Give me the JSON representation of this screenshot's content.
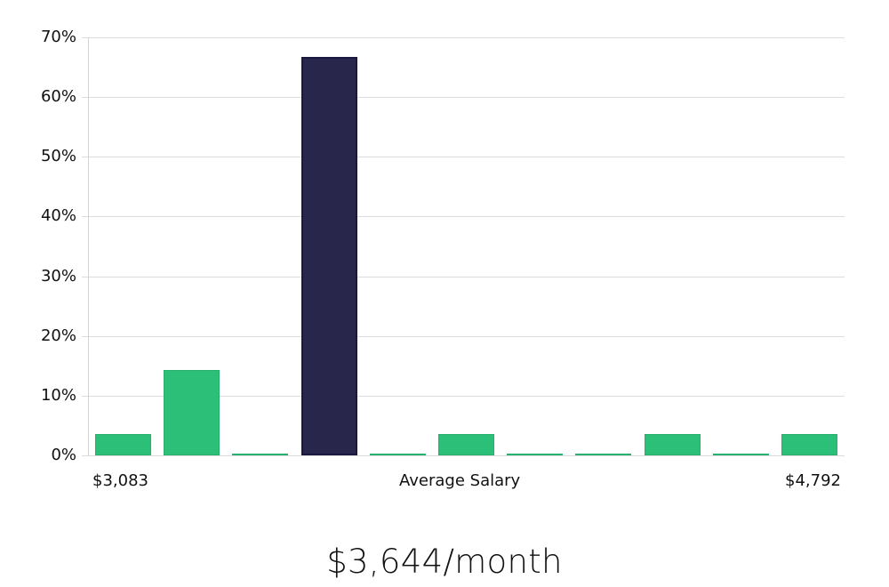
{
  "chart_data": {
    "type": "bar",
    "title": "",
    "xlabel": "Average Salary",
    "ylabel": "",
    "ylim": [
      0,
      70
    ],
    "yticks": [
      "0%",
      "10%",
      "20%",
      "30%",
      "40%",
      "50%",
      "60%",
      "70%"
    ],
    "x_range_labels": {
      "min": "$3,083",
      "max": "$4,792"
    },
    "categories": [
      "bin1",
      "bin2",
      "bin3",
      "bin4",
      "bin5",
      "bin6",
      "bin7",
      "bin8",
      "bin9",
      "bin10",
      "bin11"
    ],
    "values": [
      3.6,
      14.3,
      0,
      66.7,
      0,
      3.6,
      0,
      0,
      3.6,
      0,
      3.6
    ],
    "highlight_index": 3,
    "colors": {
      "normal": "#2bbf78",
      "highlight": "#28264a",
      "grid": "#dcdcdc"
    },
    "grid": true
  },
  "labels": {
    "x_min": "$3,083",
    "x_center": "Average Salary",
    "x_max": "$4,792"
  },
  "summary": "$3,644/month"
}
